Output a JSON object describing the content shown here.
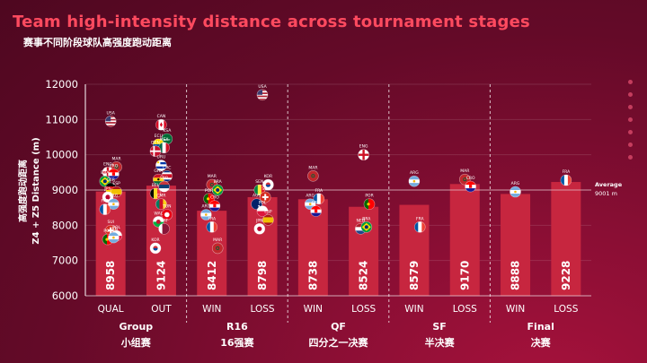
{
  "title": "Team high-intensity distance across tournament stages",
  "subtitle": "赛事不同阶段球队高强度跑动距离",
  "colors": {
    "bar": "#c7263f",
    "accent": "#ff4a5f",
    "text": "#ffffff",
    "avgline": "#e8c9d0"
  },
  "chart_data": {
    "type": "bar",
    "ylabel_cn": "高强度跑动距离",
    "ylabel_en": "Z4 + Z5 Distance (m)",
    "ylim": [
      6000,
      12000
    ],
    "yticks": [
      6000,
      7000,
      8000,
      9000,
      10000,
      11000,
      12000
    ],
    "categories": [
      "QUAL",
      "OUT",
      "WIN",
      "LOSS",
      "WIN",
      "LOSS",
      "WIN",
      "LOSS",
      "WIN",
      "LOSS"
    ],
    "values": [
      8958,
      9124,
      8412,
      8798,
      8738,
      8524,
      8579,
      9170,
      8888,
      9228
    ],
    "groups": [
      {
        "en": "Group",
        "cn": "小组赛",
        "start": 0,
        "end": 1
      },
      {
        "en": "R16",
        "cn": "16强赛",
        "start": 2,
        "end": 3
      },
      {
        "en": "QF",
        "cn": "四分之一决赛",
        "start": 4,
        "end": 5
      },
      {
        "en": "SF",
        "cn": "半决赛",
        "start": 6,
        "end": 7
      },
      {
        "en": "Final",
        "cn": "决赛",
        "start": 8,
        "end": 9
      }
    ],
    "average": {
      "label": "Average",
      "value_label": "9001 m",
      "value": 9001
    },
    "team_points": [
      {
        "cat": 0,
        "y": 10950,
        "label": "USA",
        "flag": "usa"
      },
      {
        "cat": 0,
        "y": 9650,
        "label": "MAR",
        "flag": "mar"
      },
      {
        "cat": 0,
        "y": 9500,
        "label": "ENG",
        "flag": "eng"
      },
      {
        "cat": 0,
        "y": 9450,
        "label": "CRO",
        "flag": "cro"
      },
      {
        "cat": 0,
        "y": 9250,
        "label": "BRA",
        "flag": "bra"
      },
      {
        "cat": 0,
        "y": 9050,
        "label": "GER",
        "flag": "ger"
      },
      {
        "cat": 0,
        "y": 8950,
        "label": "ESP",
        "flag": "esp"
      },
      {
        "cat": 0,
        "y": 8800,
        "label": "JPN",
        "flag": "jpn"
      },
      {
        "cat": 0,
        "y": 8600,
        "label": "ARG",
        "flag": "arg"
      },
      {
        "cat": 0,
        "y": 8450,
        "label": "FRA",
        "flag": "fra"
      },
      {
        "cat": 0,
        "y": 7850,
        "label": "SUI",
        "flag": "sui"
      },
      {
        "cat": 0,
        "y": 7700,
        "label": "POL",
        "flag": "pol"
      },
      {
        "cat": 0,
        "y": 7600,
        "label": "POR",
        "flag": "por"
      },
      {
        "cat": 0,
        "y": 7650,
        "label": "ARG",
        "flag": "arg"
      },
      {
        "cat": 1,
        "y": 10850,
        "label": "CAN",
        "flag": "can"
      },
      {
        "cat": 1,
        "y": 10450,
        "label": "KSA",
        "flag": "ksa"
      },
      {
        "cat": 1,
        "y": 10300,
        "label": "ECU",
        "flag": "ecu"
      },
      {
        "cat": 1,
        "y": 10200,
        "label": "MEX",
        "flag": "mex"
      },
      {
        "cat": 1,
        "y": 10100,
        "label": "DEN",
        "flag": "den"
      },
      {
        "cat": 1,
        "y": 9700,
        "label": "URU",
        "flag": "uru"
      },
      {
        "cat": 1,
        "y": 9400,
        "label": "CRC",
        "flag": "crc"
      },
      {
        "cat": 1,
        "y": 9300,
        "label": "GHA",
        "flag": "gha"
      },
      {
        "cat": 1,
        "y": 9100,
        "label": "SRB",
        "flag": "srb"
      },
      {
        "cat": 1,
        "y": 8900,
        "label": "BEL",
        "flag": "bel"
      },
      {
        "cat": 1,
        "y": 8600,
        "label": "CMR",
        "flag": "cmr"
      },
      {
        "cat": 1,
        "y": 8300,
        "label": "TUN",
        "flag": "tun"
      },
      {
        "cat": 1,
        "y": 8100,
        "label": "WAL",
        "flag": "wal"
      },
      {
        "cat": 1,
        "y": 7900,
        "label": "QAT",
        "flag": "qat"
      },
      {
        "cat": 1,
        "y": 7350,
        "label": "KOR",
        "flag": "kor"
      },
      {
        "cat": 2,
        "y": 9150,
        "label": "MAR",
        "flag": "mar"
      },
      {
        "cat": 2,
        "y": 9000,
        "label": "BRA",
        "flag": "bra"
      },
      {
        "cat": 2,
        "y": 8750,
        "label": "POR",
        "flag": "por"
      },
      {
        "cat": 2,
        "y": 8550,
        "label": "CRO",
        "flag": "cro"
      },
      {
        "cat": 2,
        "y": 8300,
        "label": "ARG",
        "flag": "arg"
      },
      {
        "cat": 2,
        "y": 7950,
        "label": "FRA",
        "flag": "fra"
      },
      {
        "cat": 2,
        "y": 7350,
        "label": "MAR",
        "flag": "mar"
      },
      {
        "cat": 3,
        "y": 11700,
        "label": "USA",
        "flag": "usa"
      },
      {
        "cat": 3,
        "y": 9150,
        "label": "KOR",
        "flag": "kor"
      },
      {
        "cat": 3,
        "y": 9000,
        "label": "SEN",
        "flag": "sen"
      },
      {
        "cat": 3,
        "y": 8800,
        "label": "SUI",
        "flag": "sui"
      },
      {
        "cat": 3,
        "y": 8600,
        "label": "AUS",
        "flag": "aus"
      },
      {
        "cat": 3,
        "y": 8400,
        "label": "POL",
        "flag": "pol"
      },
      {
        "cat": 3,
        "y": 8150,
        "label": "ESP",
        "flag": "esp"
      },
      {
        "cat": 3,
        "y": 7900,
        "label": "JPN",
        "flag": "jpn"
      },
      {
        "cat": 4,
        "y": 9400,
        "label": "MAR",
        "flag": "mar"
      },
      {
        "cat": 4,
        "y": 8750,
        "label": "FRA",
        "flag": "fra"
      },
      {
        "cat": 4,
        "y": 8600,
        "label": "ARG",
        "flag": "arg"
      },
      {
        "cat": 4,
        "y": 8400,
        "label": "CRO",
        "flag": "cro"
      },
      {
        "cat": 5,
        "y": 10000,
        "label": "ENG",
        "flag": "eng"
      },
      {
        "cat": 5,
        "y": 8600,
        "label": "POR",
        "flag": "por"
      },
      {
        "cat": 5,
        "y": 7900,
        "label": "NED",
        "flag": "ned"
      },
      {
        "cat": 5,
        "y": 7950,
        "label": "BRA",
        "flag": "bra"
      },
      {
        "cat": 6,
        "y": 9250,
        "label": "ARG",
        "flag": "arg"
      },
      {
        "cat": 6,
        "y": 7950,
        "label": "FRA",
        "flag": "fra"
      },
      {
        "cat": 7,
        "y": 9300,
        "label": "MAR",
        "flag": "mar"
      },
      {
        "cat": 7,
        "y": 9100,
        "label": "CRO",
        "flag": "cro"
      },
      {
        "cat": 8,
        "y": 8950,
        "label": "ARG",
        "flag": "arg"
      },
      {
        "cat": 9,
        "y": 9280,
        "label": "FRA",
        "flag": "fra"
      }
    ]
  }
}
